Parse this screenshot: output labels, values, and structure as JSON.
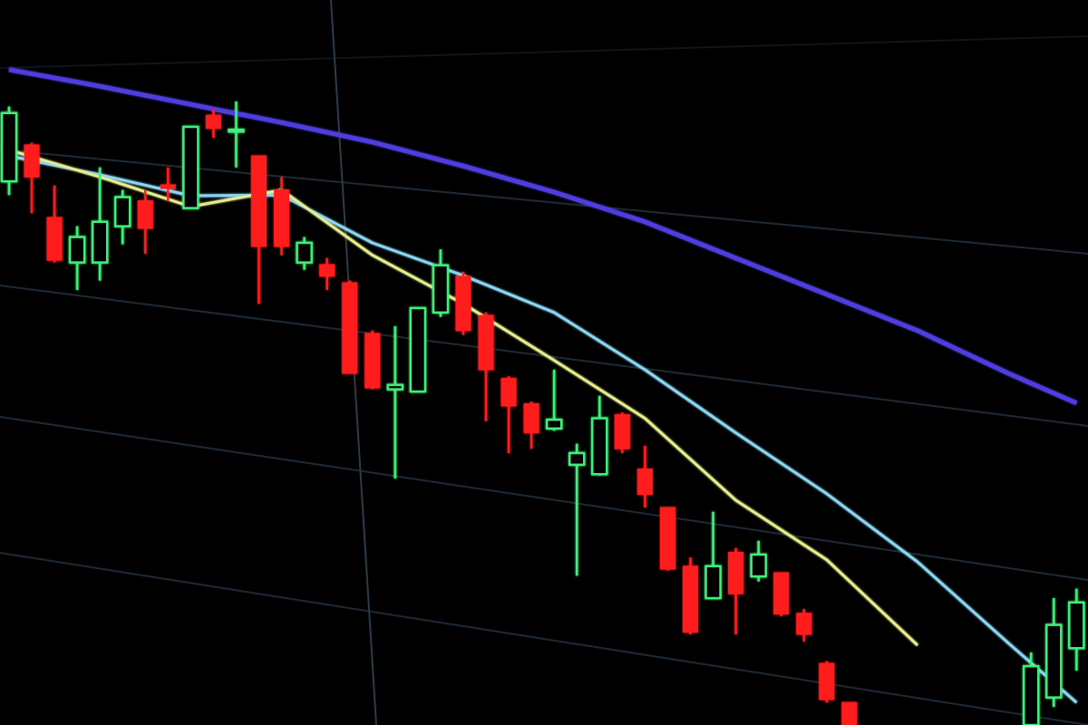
{
  "chart_data": {
    "type": "candlestick",
    "categories": [
      null,
      null,
      null,
      null,
      null,
      null,
      null,
      null,
      null,
      null,
      null,
      null,
      null,
      null,
      null,
      null,
      null,
      null,
      null,
      null,
      null,
      null,
      null,
      null,
      null,
      null,
      null,
      null,
      null,
      null,
      null,
      null,
      null,
      null,
      null,
      null,
      null,
      null,
      null,
      null,
      null,
      null,
      null,
      null,
      null,
      null,
      null,
      null
    ],
    "open": [
      75,
      80,
      70,
      63.8,
      63.8,
      68.8,
      72.3,
      74.5,
      71.3,
      84.1,
      81.9,
      78.5,
      73.8,
      63.8,
      63.5,
      61,
      54,
      46.3,
      46,
      56.9,
      61.9,
      56.5,
      47.8,
      44.3,
      40.9,
      35.9,
      34.6,
      42.8,
      35.3,
      30,
      21.9,
      17.5,
      23.8,
      20.5,
      21,
      15.4,
      8.5,
      3.1,
      null,
      null,
      null,
      null,
      null,
      null,
      null,
      0,
      3.8,
      10.6
    ],
    "high": [
      85.3,
      80.3,
      74.4,
      68.8,
      76.9,
      73.8,
      73.8,
      76.9,
      82.5,
      85,
      86,
      78.5,
      75.6,
      67.3,
      64.4,
      61.3,
      54.4,
      55,
      57.5,
      65.6,
      62.5,
      56.9,
      48.1,
      44.6,
      49,
      38.8,
      45.4,
      43.1,
      38.5,
      30,
      23.1,
      29.4,
      24.4,
      25.4,
      21,
      16,
      8.8,
      3.1,
      null,
      null,
      null,
      null,
      null,
      null,
      null,
      10,
      17.5,
      18.8
    ],
    "low": [
      73.1,
      70.6,
      63.8,
      60,
      61.3,
      66.3,
      65,
      72.3,
      71.3,
      81,
      76.9,
      58.1,
      64.8,
      62.8,
      60,
      48.5,
      46.3,
      34,
      46,
      56.3,
      53.8,
      41.9,
      37.5,
      38.1,
      40.6,
      20.6,
      34.4,
      37.5,
      30,
      21.3,
      12.5,
      17.5,
      12.5,
      19.8,
      15,
      11.5,
      3.1,
      0,
      null,
      null,
      null,
      null,
      null,
      null,
      null,
      0,
      2.5,
      7.5
    ],
    "close": [
      84.4,
      75.6,
      64.1,
      67.3,
      69.4,
      72.8,
      68.5,
      74,
      82.5,
      82.3,
      82.1,
      66,
      66,
      66.5,
      61.9,
      48.5,
      46.5,
      46.9,
      57.5,
      63.4,
      54.4,
      49,
      44,
      40.3,
      42.1,
      37.5,
      42.3,
      38.1,
      31.8,
      21.5,
      12.8,
      21.9,
      18.1,
      23.5,
      15.3,
      12.5,
      3.5,
      0,
      null,
      null,
      null,
      null,
      null,
      null,
      null,
      8.1,
      13.8,
      16.9
    ],
    "up_color": "#3cf07a",
    "down_color": "#ff1f1f",
    "ylim": [
      0,
      100
    ],
    "lines": [
      {
        "color": "#4f3ee0",
        "x": [
          0,
          4,
          8,
          12,
          16,
          20,
          24,
          28,
          32,
          36,
          40,
          44,
          47
        ],
        "values": [
          90.4,
          88.1,
          85.6,
          83.1,
          80.4,
          77.1,
          73.5,
          69.4,
          64.4,
          59.4,
          54.4,
          48.5,
          44.4
        ]
      },
      {
        "color": "#8ad6f2",
        "x": [
          0,
          4,
          8,
          12,
          16,
          20,
          24,
          28,
          32,
          36,
          40,
          44,
          47
        ],
        "values": [
          78.5,
          75.9,
          73,
          73.1,
          66.5,
          62,
          56.9,
          49,
          40.3,
          31.9,
          22.5,
          11.3,
          3.1
        ]
      },
      {
        "color": "#e6ec8c",
        "x": [
          0,
          4,
          8,
          12,
          16,
          20,
          24,
          28,
          32,
          36,
          40,
          44,
          47
        ],
        "values": [
          79.3,
          75.6,
          71.5,
          73.8,
          64.8,
          58.1,
          50.3,
          42.3,
          31,
          22.8,
          11,
          null,
          null
        ]
      }
    ]
  }
}
